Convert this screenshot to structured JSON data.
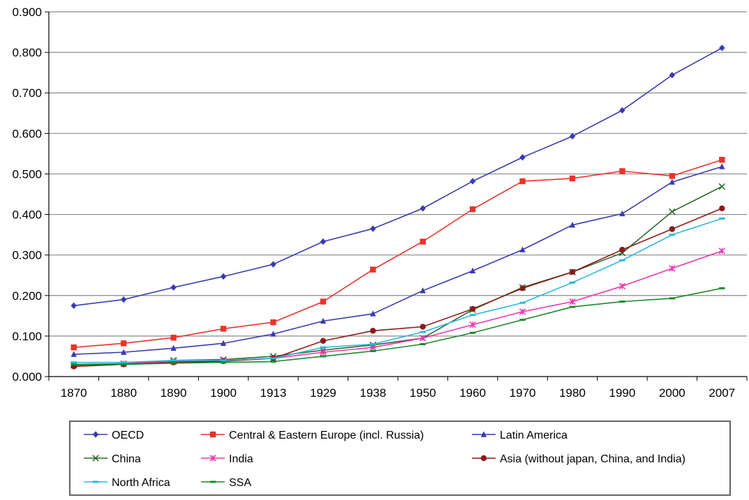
{
  "chart_data": {
    "type": "line",
    "title": "",
    "xlabel": "",
    "ylabel": "",
    "categories": [
      "1870",
      "1880",
      "1890",
      "1900",
      "1913",
      "1929",
      "1938",
      "1950",
      "1960",
      "1970",
      "1980",
      "1990",
      "2000",
      "2007"
    ],
    "ylim": [
      0,
      0.9
    ],
    "yticks": [
      "0.000",
      "0.100",
      "0.200",
      "0.300",
      "0.400",
      "0.500",
      "0.600",
      "0.700",
      "0.800",
      "0.900"
    ],
    "grid": "horizontal",
    "legend_position": "bottom",
    "series": [
      {
        "name": "OECD",
        "color": "#3a3ab0",
        "marker": "diamond",
        "values": [
          0.175,
          0.19,
          0.22,
          0.247,
          0.277,
          0.333,
          0.365,
          0.415,
          0.482,
          0.541,
          0.593,
          0.657,
          0.744,
          0.811
        ]
      },
      {
        "name": "Central & Eastern Europe (incl. Russia)",
        "color": "#e8342a",
        "marker": "square",
        "values": [
          0.072,
          0.082,
          0.096,
          0.118,
          0.134,
          0.185,
          0.264,
          0.333,
          0.413,
          0.482,
          0.489,
          0.507,
          0.495,
          0.535
        ]
      },
      {
        "name": "Latin America",
        "color": "#3a3ab0",
        "marker": "triangle",
        "values": [
          0.055,
          0.06,
          0.07,
          0.082,
          0.105,
          0.137,
          0.155,
          0.212,
          0.261,
          0.313,
          0.374,
          0.402,
          0.48,
          0.518
        ]
      },
      {
        "name": "China",
        "color": "#2f6a2f",
        "marker": "x",
        "values": [
          0.028,
          0.032,
          0.04,
          0.042,
          0.05,
          0.065,
          0.078,
          0.095,
          0.165,
          0.22,
          0.258,
          0.305,
          0.407,
          0.469
        ]
      },
      {
        "name": "India",
        "color": "#e838b0",
        "marker": "star",
        "values": [
          0.03,
          0.032,
          0.037,
          0.04,
          0.045,
          0.06,
          0.072,
          0.095,
          0.128,
          0.16,
          0.185,
          0.223,
          0.267,
          0.31
        ]
      },
      {
        "name": "Asia (without japan, China, and India)",
        "color": "#8b1a1a",
        "marker": "circle",
        "values": [
          0.025,
          0.03,
          0.035,
          0.038,
          0.045,
          0.088,
          0.113,
          0.123,
          0.167,
          0.218,
          0.258,
          0.313,
          0.364,
          0.415
        ]
      },
      {
        "name": "North Africa",
        "color": "#2bb8e0",
        "marker": "dash",
        "values": [
          0.035,
          0.035,
          0.04,
          0.04,
          0.045,
          0.072,
          0.08,
          0.11,
          0.152,
          0.182,
          0.232,
          0.287,
          0.35,
          0.39
        ]
      },
      {
        "name": "SSA",
        "color": "#1a8a2a",
        "marker": "dash",
        "values": [
          0.03,
          0.03,
          0.033,
          0.035,
          0.037,
          0.05,
          0.063,
          0.08,
          0.108,
          0.14,
          0.172,
          0.185,
          0.193,
          0.218
        ]
      }
    ]
  }
}
